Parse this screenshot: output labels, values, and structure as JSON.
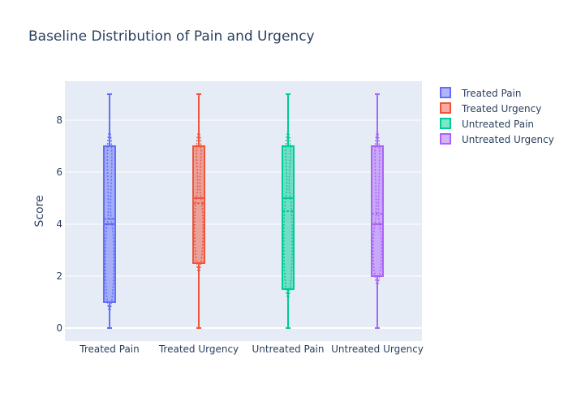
{
  "chart_data": {
    "type": "box",
    "title": "Baseline Distribution of Pain and Urgency",
    "xlabel": "",
    "ylabel": "Score",
    "ylim": [
      -0.5,
      9.5
    ],
    "yticks": [
      0,
      2,
      4,
      6,
      8
    ],
    "categories": [
      "Treated Pain",
      "Treated Urgency",
      "Untreated Pain",
      "Untreated Urgency"
    ],
    "legend_position": "top-right",
    "grid": true,
    "series": [
      {
        "name": "Treated Pain",
        "color": "#636efa",
        "min": 0,
        "q1": 1,
        "median": 4,
        "mean": 4.2,
        "q3": 7,
        "max": 9
      },
      {
        "name": "Treated Urgency",
        "color": "#ef553b",
        "min": 0,
        "q1": 2.5,
        "median": 5,
        "mean": 4.8,
        "q3": 7,
        "max": 9
      },
      {
        "name": "Untreated Pain",
        "color": "#00cc96",
        "min": 0,
        "q1": 1.5,
        "median": 5,
        "mean": 4.5,
        "q3": 7,
        "max": 9
      },
      {
        "name": "Untreated Urgency",
        "color": "#ab63fa",
        "min": 0,
        "q1": 2,
        "median": 4,
        "mean": 4.4,
        "q3": 7,
        "max": 9
      }
    ]
  }
}
